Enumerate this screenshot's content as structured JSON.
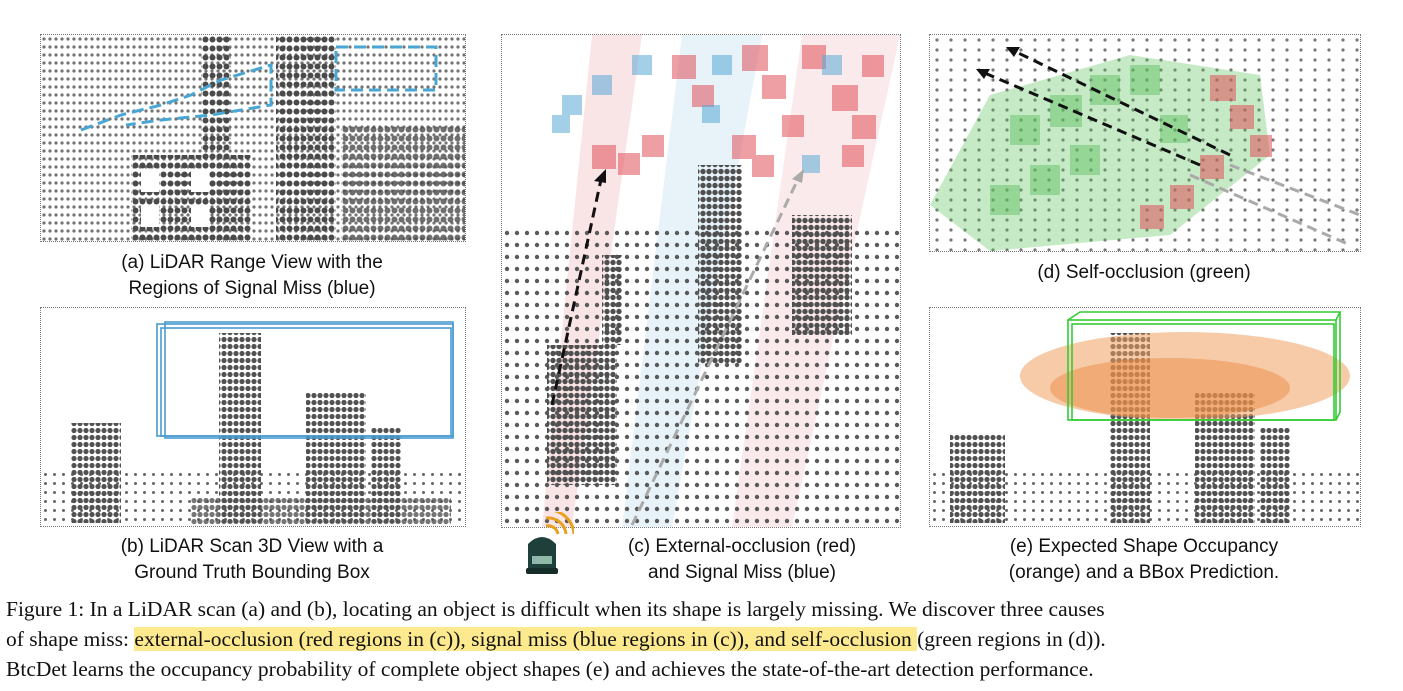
{
  "panels": {
    "a": {
      "caption_line1": "(a) LiDAR Range View with the",
      "caption_line2": "Regions of Signal Miss (blue)"
    },
    "b": {
      "caption_line1": "(b) LiDAR Scan 3D View with a",
      "caption_line2": "Ground Truth Bounding Box"
    },
    "c": {
      "caption_line1": "(c) External-occlusion (red)",
      "caption_line2": "and Signal Miss (blue)"
    },
    "d": {
      "caption_line1": "(d) Self-occlusion (green)"
    },
    "e": {
      "caption_line1": "(e) Expected Shape Occupancy",
      "caption_line2": "(orange) and a BBox Prediction."
    }
  },
  "figure_caption": {
    "line1": "Figure 1: In a LiDAR scan (a) and (b), locating an object is difficult when its shape is largely missing. We discover three causes",
    "line2_pre": "of shape miss: ",
    "line2_highlight": "external-occlusion (red regions in (c)), signal miss (blue regions in (c)), and self-occlusion ",
    "line2_post": "(green regions in (d)).",
    "line3": "BtcDet learns the occupancy probability of complete object shapes (e) and achieves the state-of-the-art detection performance."
  },
  "colors": {
    "point": "#555555",
    "signal_miss_blue": "#5aa9d6",
    "external_occlusion_red": "#e0515a",
    "self_occlusion_green": "#5cbf5c",
    "occupancy_orange": "#f0a060",
    "bbox_blue": "#4a9ad0",
    "bbox_green": "#33cc33",
    "highlight": "#fde98e"
  }
}
